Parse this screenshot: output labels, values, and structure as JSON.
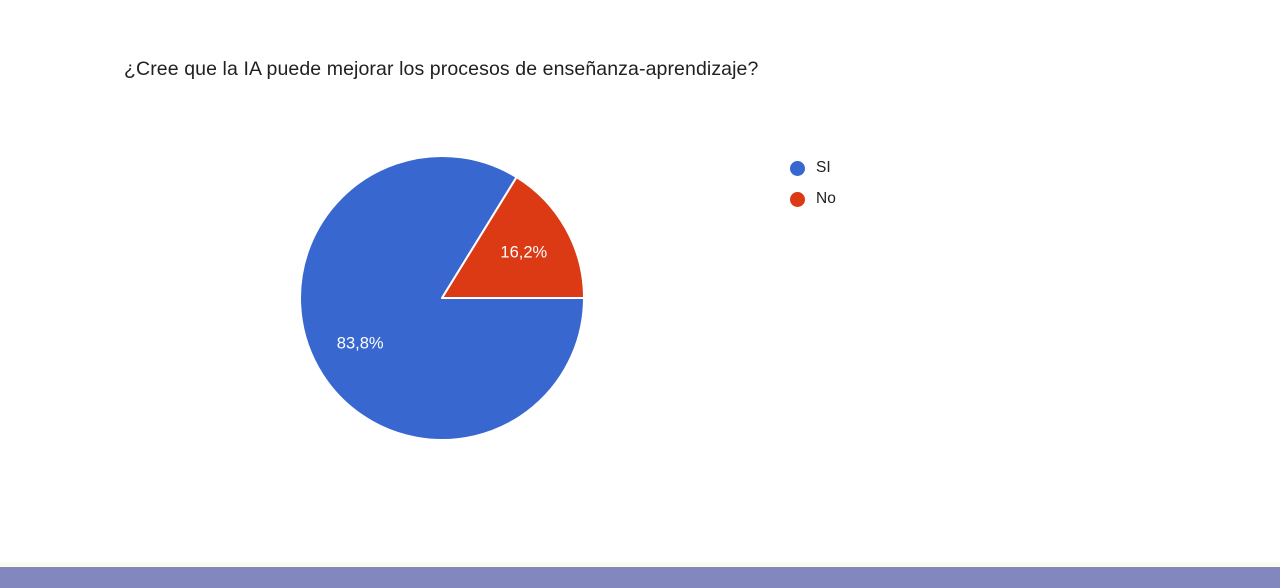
{
  "page": {
    "background": "#ffffff",
    "footer_edge_color": "#fbfbf1",
    "footer_accent_color": "#8288bd"
  },
  "chart_data": {
    "type": "pie",
    "title": "¿Cree que la IA puede mejorar los procesos de enseñanza-aprendizaje?",
    "categories": [
      "SI",
      "No"
    ],
    "values": [
      83.8,
      16.2
    ],
    "value_labels": [
      "83,8%",
      "16,2%"
    ],
    "colors": [
      "#3767cf",
      "#db3a15"
    ],
    "label_color": "#ffffff",
    "separator_color": "#ffffff",
    "title_color": "#212121",
    "legend_text_color": "#212121",
    "legend_position": "right",
    "start_angle_deg": 90
  }
}
